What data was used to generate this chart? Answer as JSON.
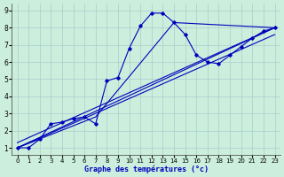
{
  "xlabel": "Graphe des températures (°c)",
  "bg_color": "#cceedd",
  "grid_color": "#aacccc",
  "line_color": "#0000bb",
  "xlim": [
    -0.5,
    23.5
  ],
  "ylim": [
    0.6,
    9.4
  ],
  "xticks": [
    0,
    1,
    2,
    3,
    4,
    5,
    6,
    7,
    8,
    9,
    10,
    11,
    12,
    13,
    14,
    15,
    16,
    17,
    18,
    19,
    20,
    21,
    22,
    23
  ],
  "yticks": [
    1,
    2,
    3,
    4,
    5,
    6,
    7,
    8,
    9
  ],
  "main_x": [
    0,
    1,
    2,
    3,
    4,
    5,
    6,
    7,
    8,
    9,
    10,
    11,
    12,
    13,
    14,
    15,
    16,
    17,
    18,
    19,
    20,
    21,
    22,
    23
  ],
  "main_y": [
    1.0,
    1.0,
    1.5,
    2.4,
    2.5,
    2.7,
    2.8,
    2.4,
    4.9,
    5.1,
    6.8,
    8.1,
    8.85,
    8.85,
    8.3,
    7.6,
    6.4,
    6.0,
    5.9,
    6.4,
    6.9,
    7.4,
    7.8,
    8.0
  ],
  "line1_x": [
    0,
    7,
    14,
    23
  ],
  "line1_y": [
    1.0,
    2.8,
    8.3,
    8.0
  ],
  "line2_x": [
    0,
    23
  ],
  "line2_y": [
    1.0,
    8.0
  ],
  "line3_x": [
    0,
    23
  ],
  "line3_y": [
    1.3,
    8.0
  ],
  "line4_x": [
    0,
    23
  ],
  "line4_y": [
    1.0,
    7.6
  ]
}
